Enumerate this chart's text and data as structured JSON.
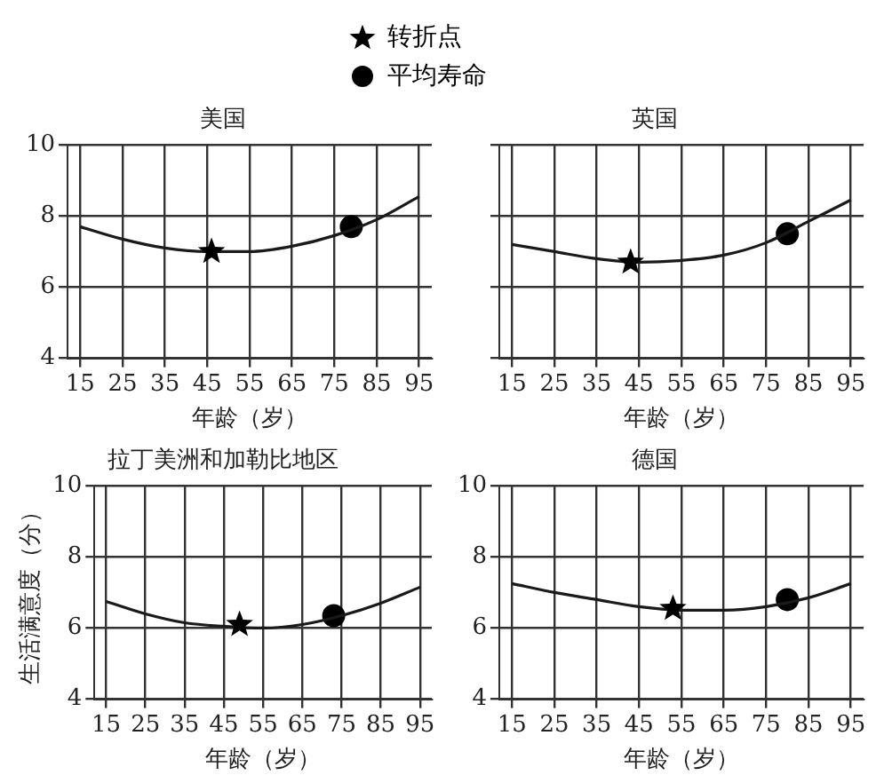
{
  "chart_data": [
    {
      "type": "line",
      "title": "美国",
      "xlabel": "年龄（岁）",
      "xlim": [
        12,
        98
      ],
      "xticks": [
        15,
        25,
        35,
        45,
        55,
        65,
        75,
        85,
        95
      ],
      "ylim": [
        4,
        10
      ],
      "yticks": [
        4,
        6,
        8,
        10
      ],
      "grid": true,
      "legend": "top",
      "series": [
        {
          "marker": "none",
          "color": "#1a1a1a",
          "x": [
            15,
            25,
            35,
            45,
            55,
            65,
            75,
            85,
            95
          ],
          "values": [
            7.7,
            7.35,
            7.1,
            7.0,
            7.0,
            7.15,
            7.45,
            7.9,
            8.55
          ]
        },
        {
          "type": "scatter",
          "name": "转折点",
          "marker": "star",
          "color": "#000000",
          "x": [
            46
          ],
          "values": [
            7.0
          ]
        },
        {
          "type": "scatter",
          "name": "平均寿命",
          "marker": "circle",
          "color": "#000000",
          "x": [
            79
          ],
          "values": [
            7.7
          ]
        }
      ]
    },
    {
      "type": "line",
      "title": "英国",
      "xlabel": "年龄（岁）",
      "xlim": [
        12,
        98
      ],
      "xticks": [
        15,
        25,
        35,
        45,
        55,
        65,
        75,
        85,
        95
      ],
      "ylim": [
        4,
        10
      ],
      "yticks": [
        4,
        6,
        8,
        10
      ],
      "grid": true,
      "tick_labels": "x",
      "series": [
        {
          "marker": "none",
          "color": "#1a1a1a",
          "x": [
            15,
            25,
            35,
            45,
            55,
            65,
            75,
            85,
            95
          ],
          "values": [
            7.2,
            7.0,
            6.8,
            6.7,
            6.75,
            6.9,
            7.25,
            7.85,
            8.45
          ]
        },
        {
          "type": "scatter",
          "marker": "star",
          "color": "#000000",
          "x": [
            43
          ],
          "values": [
            6.7
          ]
        },
        {
          "type": "scatter",
          "marker": "circle",
          "color": "#000000",
          "x": [
            80
          ],
          "values": [
            7.5
          ]
        }
      ]
    },
    {
      "type": "line",
      "title": "拉丁美洲和加勒比地区",
      "xlabel": "年龄（岁）",
      "ylabel": "生活满意度（分）",
      "xlim": [
        12,
        98
      ],
      "xticks": [
        15,
        25,
        35,
        45,
        55,
        65,
        75,
        85,
        95
      ],
      "ylim": [
        4,
        10
      ],
      "yticks": [
        4,
        6,
        8,
        10
      ],
      "grid": true,
      "series": [
        {
          "marker": "none",
          "color": "#1a1a1a",
          "x": [
            15,
            25,
            35,
            45,
            55,
            65,
            75,
            85,
            95
          ],
          "values": [
            6.75,
            6.4,
            6.15,
            6.05,
            6.0,
            6.1,
            6.35,
            6.7,
            7.15
          ]
        },
        {
          "type": "scatter",
          "marker": "star",
          "color": "#000000",
          "x": [
            49
          ],
          "values": [
            6.1
          ]
        },
        {
          "type": "scatter",
          "marker": "circle",
          "color": "#000000",
          "x": [
            73
          ],
          "values": [
            6.35
          ]
        }
      ]
    },
    {
      "type": "line",
      "title": "德国",
      "xlabel": "年龄（岁）",
      "xlim": [
        12,
        98
      ],
      "xticks": [
        15,
        25,
        35,
        45,
        55,
        65,
        75,
        85,
        95
      ],
      "ylim": [
        4,
        10
      ],
      "yticks": [
        4,
        6,
        8,
        10
      ],
      "grid": true,
      "series": [
        {
          "marker": "none",
          "color": "#1a1a1a",
          "x": [
            15,
            25,
            35,
            45,
            55,
            65,
            75,
            85,
            95
          ],
          "values": [
            7.25,
            7.0,
            6.8,
            6.6,
            6.5,
            6.5,
            6.6,
            6.85,
            7.25
          ]
        },
        {
          "type": "scatter",
          "marker": "star",
          "color": "#000000",
          "x": [
            53
          ],
          "values": [
            6.55
          ]
        },
        {
          "type": "scatter",
          "marker": "circle",
          "color": "#000000",
          "x": [
            80
          ],
          "values": [
            6.8
          ]
        }
      ]
    }
  ]
}
